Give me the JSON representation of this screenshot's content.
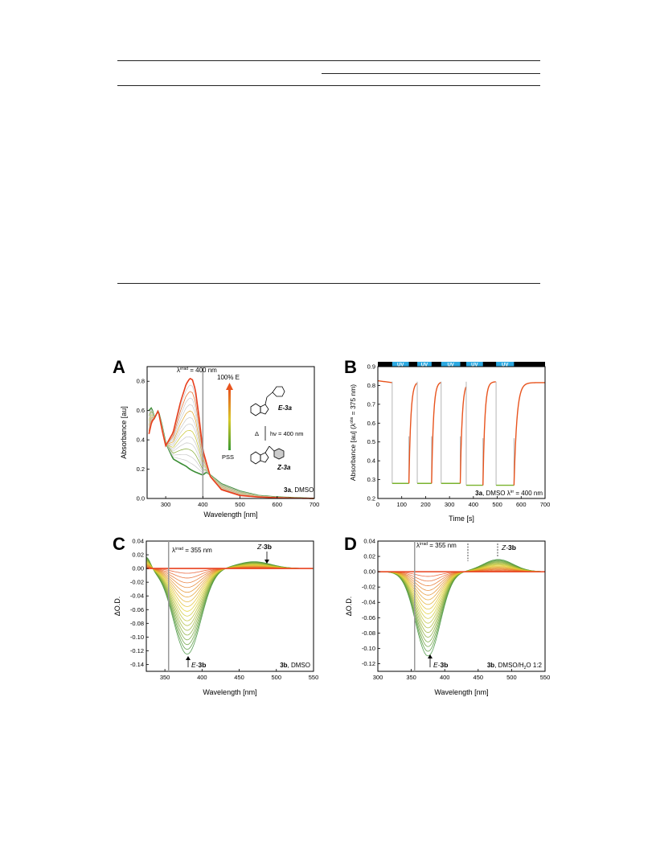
{
  "panels": {
    "A": {
      "letter": "A",
      "chart_data": {
        "type": "line",
        "xlabel": "Wavelength [nm]",
        "ylabel": "Absorbance [au]",
        "xlim": [
          250,
          700
        ],
        "ylim": [
          0.0,
          0.9
        ],
        "xticks": [
          300,
          400,
          500,
          600,
          700
        ],
        "yticks": [
          0.0,
          0.2,
          0.4,
          0.6,
          0.8
        ],
        "irradiation_line_x": 400,
        "series": [
          {
            "name": "100% E",
            "color": "#e8541e",
            "x": [
              255,
              262,
              270,
              280,
              290,
              300,
              320,
              340,
              355,
              365,
              372,
              380,
              390,
              400,
              420,
              450,
              500,
              550,
              600,
              650,
              700
            ],
            "y": [
              0.44,
              0.52,
              0.55,
              0.6,
              0.47,
              0.36,
              0.45,
              0.66,
              0.78,
              0.82,
              0.81,
              0.74,
              0.55,
              0.33,
              0.15,
              0.06,
              0.02,
              0.01,
              0.005,
              0.002,
              0.0
            ]
          },
          {
            "name": "PSS",
            "color": "#2d8a2d",
            "x": [
              255,
              262,
              270,
              280,
              290,
              300,
              320,
              340,
              355,
              365,
              372,
              380,
              390,
              400,
              410,
              420,
              450,
              500,
              550,
              600,
              650,
              700
            ],
            "y": [
              0.6,
              0.62,
              0.55,
              0.6,
              0.5,
              0.38,
              0.27,
              0.24,
              0.22,
              0.2,
              0.19,
              0.18,
              0.17,
              0.16,
              0.18,
              0.16,
              0.1,
              0.05,
              0.02,
              0.01,
              0.005,
              0.0
            ]
          }
        ]
      },
      "legend_top": "100% E",
      "legend_bottom": "PSS",
      "annot_irrad_pre": "λ",
      "annot_irrad_sup": "irrad",
      "annot_irrad_post": " = 400 nm",
      "label_E": "E-3a",
      "label_Z": "Z-3a",
      "arrow_left": "Δ",
      "arrow_right": "hν = 400 nm",
      "caption_bold": "3a",
      "caption_rest": ", DMSO"
    },
    "B": {
      "letter": "B",
      "chart_data": {
        "type": "line",
        "xlabel": "Time [s]",
        "ylabel": "Absorbance [au] (λ",
        "ylabel_sup": "obs",
        "ylabel_post": " = 375 nm)",
        "xlim": [
          0,
          700
        ],
        "ylim": [
          0.2,
          0.9
        ],
        "xticks": [
          0,
          100,
          200,
          300,
          400,
          500,
          600,
          700
        ],
        "yticks": [
          0.2,
          0.3,
          0.4,
          0.5,
          0.6,
          0.7,
          0.8,
          0.9
        ],
        "uv_bars": [
          [
            60,
            130
          ],
          [
            165,
            225
          ],
          [
            265,
            345
          ],
          [
            370,
            440
          ],
          [
            495,
            570
          ]
        ],
        "uv_label": "UV",
        "high": 0.82,
        "low": [
          0.28,
          0.28,
          0.28,
          0.27,
          0.27
        ],
        "color_high": "#e8541e",
        "color_low": "#7ab32e"
      },
      "caption_bold": "3a",
      "caption_rest": ", DMSO λ",
      "caption_sup": "irr",
      "caption_post": " = 400 nm"
    },
    "C": {
      "letter": "C",
      "chart_data": {
        "type": "line",
        "xlabel": "Wavelength [nm]",
        "ylabel": "ΔO.D.",
        "xlim": [
          325,
          550
        ],
        "ylim": [
          -0.15,
          0.04
        ],
        "xticks": [
          350,
          400,
          450,
          500,
          550
        ],
        "yticks": [
          0.04,
          0.02,
          0.0,
          -0.02,
          -0.04,
          -0.06,
          -0.08,
          -0.1,
          -0.12,
          -0.14
        ],
        "irradiation_line_x": 355,
        "min_x": 380,
        "min_y": -0.125,
        "pos_peak_x": 470,
        "pos_peak_y": 0.01,
        "n_traces": 18
      },
      "annot_irrad_pre": "λ",
      "annot_irrad_sup": "irrad",
      "annot_irrad_post": " = 355 nm",
      "label_Z_pre": "Z-",
      "label_Z_bold": "3b",
      "label_E_pre": "E-",
      "label_E_bold": "3b",
      "caption_bold": "3b",
      "caption_rest": ", DMSO"
    },
    "D": {
      "letter": "D",
      "chart_data": {
        "type": "line",
        "xlabel": "Wavelength [nm]",
        "ylabel": "ΔO.D.",
        "xlim": [
          300,
          550
        ],
        "ylim": [
          -0.13,
          0.04
        ],
        "xticks": [
          300,
          350,
          400,
          450,
          500,
          550
        ],
        "yticks": [
          0.04,
          0.02,
          0.0,
          -0.02,
          -0.04,
          -0.06,
          -0.08,
          -0.1,
          -0.12
        ],
        "irradiation_line_x": 355,
        "min_x": 375,
        "min_y": -0.11,
        "pos_peak_x": 480,
        "pos_peak_y": 0.016,
        "n_traces": 18
      },
      "annot_irrad_pre": "λ",
      "annot_irrad_sup": "irrad",
      "annot_irrad_post": " = 355 nm",
      "label_Z_pre": "Z-",
      "label_Z_bold": "3b",
      "label_E_pre": "E-",
      "label_E_bold": "3b",
      "caption_bold": "3b",
      "caption_rest": ", DMSO/H",
      "caption_sub": "2",
      "caption_post": "O 1:2"
    }
  }
}
